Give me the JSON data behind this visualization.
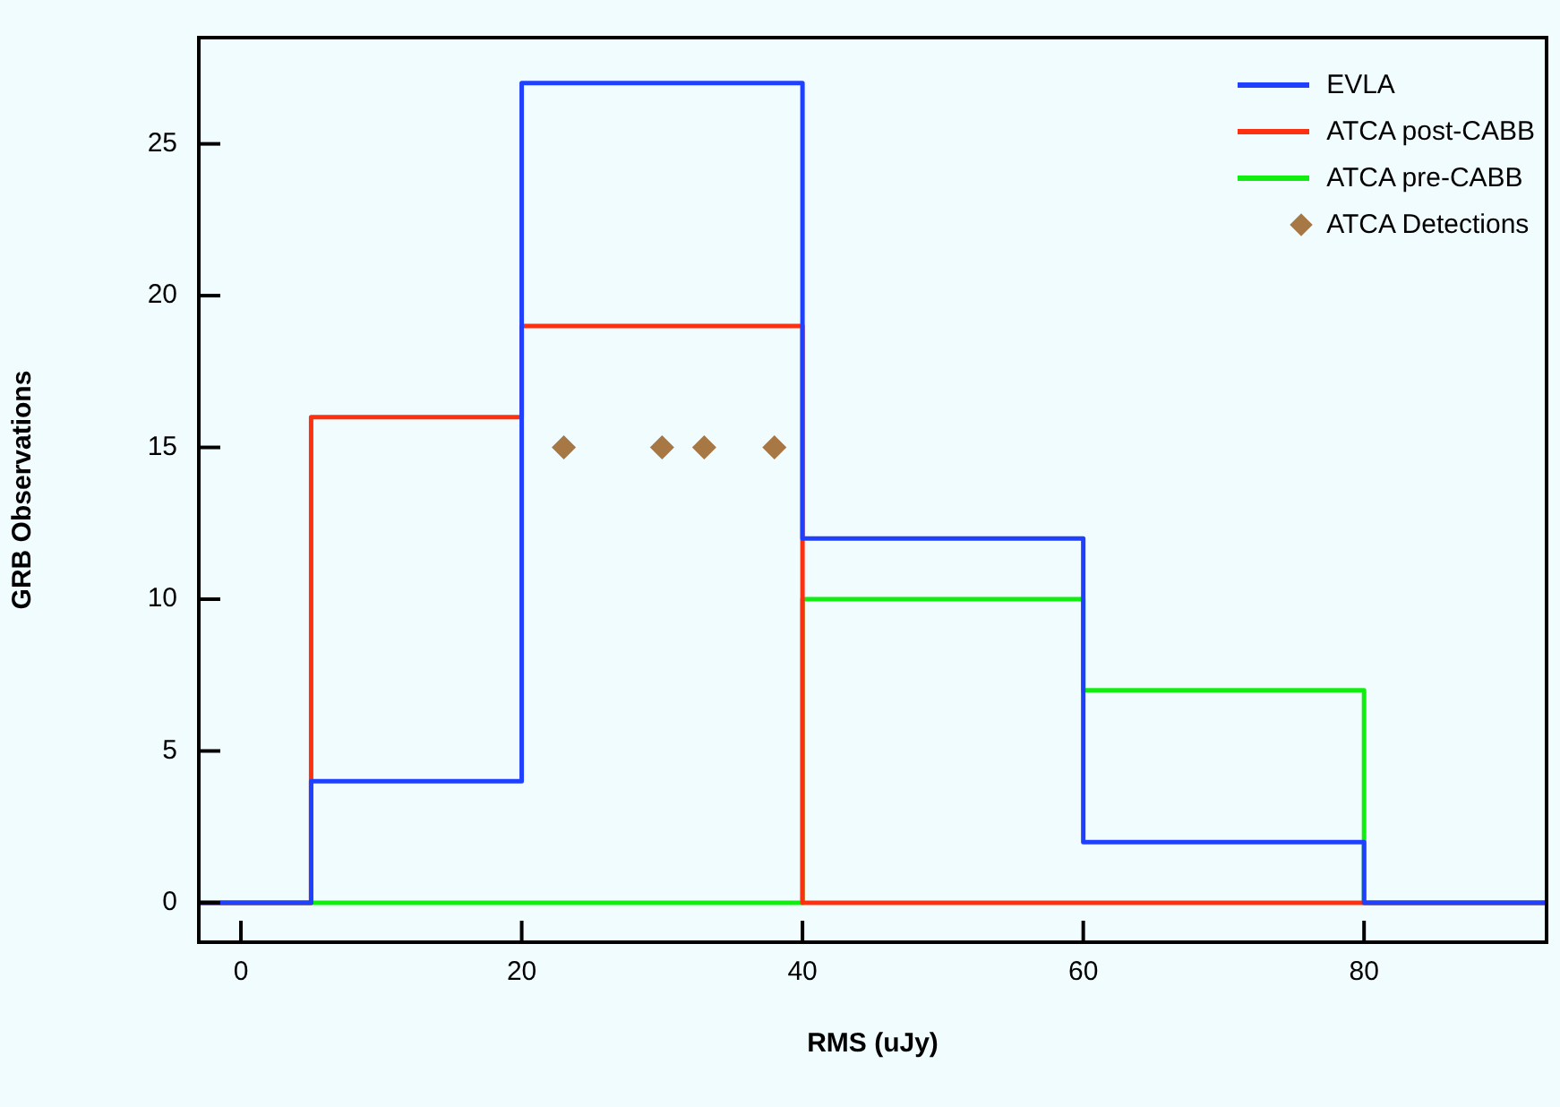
{
  "chart_data": {
    "type": "step",
    "xlabel": "RMS (uJy)",
    "ylabel": "GRB Observations",
    "xlim": [
      -3,
      93
    ],
    "ylim": [
      -1.3,
      28.5
    ],
    "xticks": [
      0,
      20,
      40,
      60,
      80
    ],
    "yticks": [
      0,
      5,
      10,
      15,
      20,
      25
    ],
    "grid": false,
    "legend": "top right",
    "line_style": "solid",
    "series": [
      {
        "name": "EVLA",
        "type": "step",
        "color": "#2040ff",
        "marker": "none",
        "x": [
          -3,
          5,
          20,
          40,
          60,
          80,
          93
        ],
        "values": [
          0,
          4,
          27,
          12,
          2,
          0,
          0
        ]
      },
      {
        "name": "ATCA post-CABB",
        "type": "step",
        "color": "#ff3010",
        "marker": "none",
        "x": [
          -3,
          5,
          20,
          40,
          60,
          80,
          93
        ],
        "values": [
          0,
          16,
          19,
          0,
          0,
          0,
          0
        ]
      },
      {
        "name": "ATCA pre-CABB",
        "type": "step",
        "color": "#10ee10",
        "marker": "none",
        "x": [
          -3,
          5,
          20,
          40,
          60,
          80,
          93
        ],
        "values": [
          0,
          0,
          0,
          10,
          7,
          0,
          0
        ]
      },
      {
        "name": "ATCA Detections",
        "type": "scatter",
        "color": "#a87844",
        "marker": "diamond",
        "x": [
          23,
          30,
          33,
          38
        ],
        "values": [
          15,
          15,
          15,
          15
        ]
      }
    ]
  }
}
